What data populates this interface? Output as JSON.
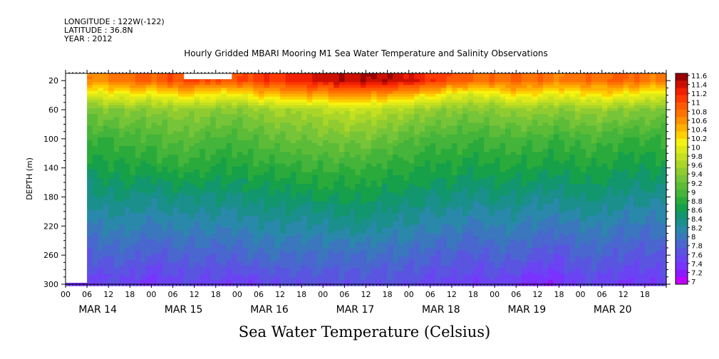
{
  "meta": {
    "longitude": "LONGITUDE : 122W(-122)",
    "latitude": "LATITUDE : 36.8N",
    "year": "YEAR : 2012"
  },
  "title": "Hourly Gridded MBARI Mooring M1 Sea Water Temperature and Salinity Observations",
  "footer": "Sea Water Temperature (Celsius)",
  "colors": {
    "scale": [
      "#c000ff",
      "#8c1aff",
      "#7a33ff",
      "#6a44f2",
      "#5a55e0",
      "#4a66cf",
      "#3a77bd",
      "#2a88aa",
      "#1b8f8c",
      "#12966e",
      "#16a04a",
      "#2aaa3a",
      "#44b43a",
      "#5cbc38",
      "#76c438",
      "#90cc30",
      "#aad628",
      "#c4e020",
      "#ddea18",
      "#f6f210",
      "#ffd000",
      "#ffb000",
      "#ff9000",
      "#ff7400",
      "#ff5a00",
      "#ff3a00",
      "#f02000",
      "#cc1000",
      "#990000"
    ]
  },
  "chart_data": {
    "type": "heatmap",
    "title": "Hourly Gridded MBARI Mooring M1 Sea Water Temperature and Salinity Observations",
    "xlabel": "",
    "ylabel": "DEPTH (m)",
    "ylim": [
      300,
      10
    ],
    "xlim_hours": [
      0,
      168
    ],
    "y_ticks": [
      20,
      60,
      100,
      140,
      180,
      220,
      260,
      300
    ],
    "x_tick_labels": [
      "00",
      "06",
      "12",
      "18",
      "00",
      "06",
      "12",
      "18",
      "00",
      "06",
      "12",
      "18",
      "00",
      "06",
      "12",
      "18",
      "00",
      "06",
      "12",
      "18",
      "00",
      "06",
      "12",
      "18",
      "00",
      "06",
      "12",
      "18"
    ],
    "day_labels": [
      "MAR 14",
      "MAR 15",
      "MAR 16",
      "MAR 17",
      "MAR 18",
      "MAR 19",
      "MAR 20"
    ],
    "colorbar_labels": [
      "11.6",
      "11.4",
      "11.2",
      "11",
      "10.8",
      "10.6",
      "10.4",
      "10.2",
      "10",
      "9.8",
      "9.6",
      "9.4",
      "9.2",
      "9",
      "8.8",
      "8.6",
      "8.4",
      "8.2",
      "8",
      "7.8",
      "7.6",
      "7.4",
      "7.2",
      "7"
    ],
    "colorbar_range": [
      7,
      11.6
    ],
    "depths": [
      20,
      40,
      60,
      100,
      140,
      180,
      220,
      260,
      300
    ],
    "times": [
      6,
      12,
      18,
      24,
      30,
      36,
      42,
      48,
      54,
      60,
      66,
      72,
      78,
      84,
      90,
      96,
      102,
      108,
      114,
      120,
      126,
      132,
      138,
      144,
      150,
      156,
      162,
      168
    ],
    "values": [
      [
        10.6,
        10.7,
        10.8,
        10.9,
        11.0,
        11.1,
        11.0,
        11.0,
        11.1,
        11.2,
        11.3,
        11.4,
        11.5,
        11.5,
        11.5,
        11.4,
        11.2,
        11.0,
        10.8,
        10.8,
        10.9,
        10.8,
        10.7,
        10.8,
        10.8,
        10.9,
        10.8,
        10.7
      ],
      [
        9.9,
        10.0,
        10.1,
        10.0,
        10.2,
        10.2,
        10.1,
        10.0,
        10.3,
        10.4,
        10.5,
        10.5,
        10.6,
        10.6,
        10.5,
        10.4,
        10.2,
        10.0,
        9.9,
        10.0,
        10.2,
        10.1,
        10.0,
        10.1,
        10.2,
        10.1,
        10.0,
        9.9
      ],
      [
        9.3,
        9.4,
        9.4,
        9.4,
        9.5,
        9.5,
        9.4,
        9.4,
        9.5,
        9.6,
        9.6,
        9.7,
        9.8,
        9.8,
        9.7,
        9.6,
        9.5,
        9.4,
        9.4,
        9.4,
        9.5,
        9.5,
        9.4,
        9.5,
        9.5,
        9.4,
        9.4,
        9.3
      ],
      [
        8.9,
        8.9,
        9.0,
        9.0,
        9.1,
        9.1,
        9.0,
        9.0,
        9.1,
        9.2,
        9.2,
        9.3,
        9.3,
        9.3,
        9.2,
        9.1,
        9.0,
        9.0,
        8.9,
        9.0,
        9.0,
        9.0,
        8.9,
        9.0,
        9.0,
        8.9,
        8.9,
        8.9
      ],
      [
        8.6,
        8.7,
        8.7,
        8.7,
        8.8,
        8.8,
        8.7,
        8.7,
        8.8,
        8.8,
        8.9,
        8.9,
        8.9,
        8.9,
        8.8,
        8.8,
        8.7,
        8.7,
        8.6,
        8.7,
        8.7,
        8.7,
        8.6,
        8.7,
        8.7,
        8.6,
        8.6,
        8.6
      ],
      [
        8.3,
        8.4,
        8.4,
        8.3,
        8.4,
        8.4,
        8.4,
        8.4,
        8.5,
        8.5,
        8.5,
        8.6,
        8.6,
        8.6,
        8.5,
        8.5,
        8.4,
        8.4,
        8.3,
        8.4,
        8.4,
        8.3,
        8.3,
        8.4,
        8.4,
        8.3,
        8.3,
        8.3
      ],
      [
        8.0,
        8.1,
        8.1,
        8.0,
        8.1,
        8.1,
        8.1,
        8.1,
        8.2,
        8.2,
        8.2,
        8.2,
        8.3,
        8.3,
        8.2,
        8.2,
        8.1,
        8.1,
        8.0,
        8.1,
        8.1,
        8.0,
        8.0,
        8.1,
        8.1,
        8.0,
        8.0,
        8.0
      ],
      [
        7.7,
        7.8,
        7.8,
        7.7,
        7.8,
        7.8,
        7.8,
        7.8,
        7.9,
        7.9,
        7.9,
        7.9,
        7.9,
        7.9,
        7.9,
        7.9,
        7.8,
        7.8,
        7.7,
        7.8,
        7.8,
        7.7,
        7.6,
        7.8,
        7.8,
        7.7,
        7.7,
        7.7
      ],
      [
        7.4,
        7.5,
        7.5,
        7.3,
        7.5,
        7.5,
        7.5,
        7.4,
        7.5,
        7.6,
        7.6,
        7.6,
        7.6,
        7.6,
        7.6,
        7.6,
        7.5,
        7.5,
        7.4,
        7.5,
        7.4,
        7.2,
        7.3,
        7.5,
        7.5,
        7.4,
        7.4,
        7.4
      ]
    ],
    "missing_regions": [
      {
        "hours": [
          0,
          6
        ],
        "depth": [
          10,
          300
        ]
      },
      {
        "hours": [
          33,
          46
        ],
        "depth": [
          10,
          20
        ]
      }
    ],
    "grid": false
  }
}
